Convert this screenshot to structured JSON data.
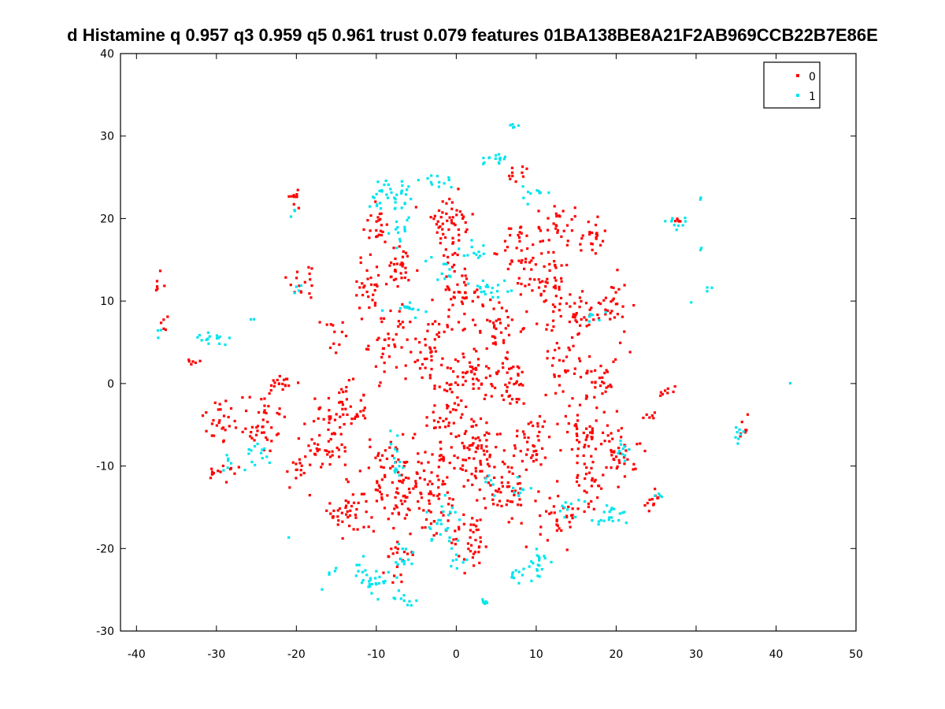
{
  "chart_data": {
    "type": "scatter",
    "title": "d Histamine q 0.957 q3 0.959 q5 0.961 trust 0.079 features 01BA138BE8A21F2AB969CCB22B7E86E",
    "xlabel": "",
    "ylabel": "",
    "xlim": [
      -42,
      50
    ],
    "ylim": [
      -30,
      40
    ],
    "x_ticks": [
      "-40",
      "-30",
      "-20",
      "-10",
      "0",
      "10",
      "20",
      "30",
      "40",
      "50"
    ],
    "y_ticks": [
      "-30",
      "-20",
      "-10",
      "0",
      "10",
      "20",
      "30",
      "40"
    ],
    "grid": false,
    "legend_position": "top-right",
    "series": [
      {
        "name": "0",
        "color": "#ff0000",
        "clusters": [
          {
            "cx": -37.5,
            "cy": 12.5,
            "rx": 0.6,
            "ry": 1.5,
            "n": 6
          },
          {
            "cx": -36.5,
            "cy": 7,
            "rx": 0.5,
            "ry": 1.2,
            "n": 5
          },
          {
            "cx": -33,
            "cy": 2.5,
            "rx": 1.3,
            "ry": 0.8,
            "n": 6
          },
          {
            "cx": -29.5,
            "cy": -4.5,
            "rx": 2.0,
            "ry": 2.5,
            "n": 22
          },
          {
            "cx": -29,
            "cy": -11,
            "rx": 2.0,
            "ry": 1.0,
            "n": 14
          },
          {
            "cx": -24.5,
            "cy": -4.5,
            "rx": 2.8,
            "ry": 3.5,
            "n": 45
          },
          {
            "cx": -22,
            "cy": 0,
            "rx": 1.6,
            "ry": 1.0,
            "n": 18
          },
          {
            "cx": -20,
            "cy": -10.5,
            "rx": 1.3,
            "ry": 2.0,
            "n": 14
          },
          {
            "cx": -20,
            "cy": 22.5,
            "rx": 1.0,
            "ry": 1.5,
            "n": 10
          },
          {
            "cx": -19,
            "cy": 12.5,
            "rx": 1.8,
            "ry": 2.0,
            "n": 16
          },
          {
            "cx": -16,
            "cy": -8,
            "rx": 2.5,
            "ry": 2.2,
            "n": 35
          },
          {
            "cx": -14.5,
            "cy": -3.5,
            "rx": 3.0,
            "ry": 2.8,
            "n": 55
          },
          {
            "cx": -15.5,
            "cy": 6,
            "rx": 1.2,
            "ry": 2.0,
            "n": 12
          },
          {
            "cx": -13.5,
            "cy": -15.5,
            "rx": 1.8,
            "ry": 3.5,
            "n": 40
          },
          {
            "cx": -11,
            "cy": 12,
            "rx": 1.8,
            "ry": 3.0,
            "n": 30
          },
          {
            "cx": -9,
            "cy": -12,
            "rx": 2.0,
            "ry": 5.0,
            "n": 55
          },
          {
            "cx": -10,
            "cy": 19,
            "rx": 1.5,
            "ry": 2.0,
            "n": 22
          },
          {
            "cx": -8.5,
            "cy": 5,
            "rx": 2.0,
            "ry": 3.5,
            "n": 40
          },
          {
            "cx": -7,
            "cy": -22,
            "rx": 1.5,
            "ry": 2.2,
            "n": 18
          },
          {
            "cx": -7,
            "cy": 14,
            "rx": 2.0,
            "ry": 2.2,
            "n": 30
          },
          {
            "cx": -6.5,
            "cy": -13,
            "rx": 1.2,
            "ry": 4.5,
            "n": 30
          },
          {
            "cx": -3,
            "cy": -12,
            "rx": 2.2,
            "ry": 5.5,
            "n": 80
          },
          {
            "cx": -3,
            "cy": 4,
            "rx": 2.2,
            "ry": 3.5,
            "n": 45
          },
          {
            "cx": -1,
            "cy": -3,
            "rx": 1.5,
            "ry": 3.0,
            "n": 30
          },
          {
            "cx": -1,
            "cy": 19,
            "rx": 2.8,
            "ry": 3.5,
            "n": 55
          },
          {
            "cx": 0.5,
            "cy": 11,
            "rx": 2.5,
            "ry": 3.0,
            "n": 45
          },
          {
            "cx": 2,
            "cy": -8,
            "rx": 3.0,
            "ry": 4.5,
            "n": 80
          },
          {
            "cx": 2.5,
            "cy": 1.5,
            "rx": 2.5,
            "ry": 2.5,
            "n": 45
          },
          {
            "cx": 2,
            "cy": -19,
            "rx": 2.2,
            "ry": 3.0,
            "n": 40
          },
          {
            "cx": 5,
            "cy": 7,
            "rx": 2.5,
            "ry": 3.0,
            "n": 40
          },
          {
            "cx": 6,
            "cy": -13,
            "rx": 2.5,
            "ry": 3.5,
            "n": 50
          },
          {
            "cx": 7,
            "cy": 0,
            "rx": 2.2,
            "ry": 2.5,
            "n": 35
          },
          {
            "cx": 8,
            "cy": 16,
            "rx": 2.0,
            "ry": 3.0,
            "n": 35
          },
          {
            "cx": 8,
            "cy": 25.5,
            "rx": 1.5,
            "ry": 0.8,
            "n": 10
          },
          {
            "cx": 9.5,
            "cy": -7,
            "rx": 2.2,
            "ry": 3.0,
            "n": 40
          },
          {
            "cx": 11.5,
            "cy": 12,
            "rx": 2.8,
            "ry": 4.0,
            "n": 60
          },
          {
            "cx": 12.5,
            "cy": 19,
            "rx": 2.0,
            "ry": 2.5,
            "n": 30
          },
          {
            "cx": 13,
            "cy": -16,
            "rx": 2.2,
            "ry": 3.0,
            "n": 35
          },
          {
            "cx": 13.5,
            "cy": 3,
            "rx": 2.2,
            "ry": 3.0,
            "n": 30
          },
          {
            "cx": 15.5,
            "cy": 8,
            "rx": 2.0,
            "ry": 2.2,
            "n": 30
          },
          {
            "cx": 16,
            "cy": -6,
            "rx": 2.5,
            "ry": 3.0,
            "n": 50
          },
          {
            "cx": 16.5,
            "cy": -12,
            "rx": 1.8,
            "ry": 2.5,
            "n": 25
          },
          {
            "cx": 17,
            "cy": 17.5,
            "rx": 1.5,
            "ry": 2.5,
            "n": 22
          },
          {
            "cx": 18,
            "cy": 1,
            "rx": 2.0,
            "ry": 2.5,
            "n": 30
          },
          {
            "cx": 19.5,
            "cy": 9,
            "rx": 1.8,
            "ry": 3.0,
            "n": 30
          },
          {
            "cx": 20.5,
            "cy": -8,
            "rx": 1.8,
            "ry": 3.5,
            "n": 40
          },
          {
            "cx": 24,
            "cy": -4,
            "rx": 0.8,
            "ry": 0.6,
            "n": 6
          },
          {
            "cx": 24.5,
            "cy": -14.5,
            "rx": 1.0,
            "ry": 1.2,
            "n": 12
          },
          {
            "cx": 26.5,
            "cy": -1,
            "rx": 1.5,
            "ry": 0.6,
            "n": 8
          },
          {
            "cx": 28,
            "cy": 19.5,
            "rx": 0.8,
            "ry": 0.5,
            "n": 5
          },
          {
            "cx": 36,
            "cy": -6,
            "rx": 0.5,
            "ry": 1.5,
            "n": 8
          }
        ]
      },
      {
        "name": "1",
        "color": "#00e5ee",
        "clusters": [
          {
            "cx": -30.5,
            "cy": 5.5,
            "rx": 1.8,
            "ry": 0.8,
            "n": 16
          },
          {
            "cx": -37,
            "cy": 6.5,
            "rx": 0.4,
            "ry": 0.6,
            "n": 3
          },
          {
            "cx": -28.5,
            "cy": -9.5,
            "rx": 1.0,
            "ry": 1.0,
            "n": 6
          },
          {
            "cx": -25,
            "cy": -8.5,
            "rx": 1.5,
            "ry": 1.5,
            "n": 14
          },
          {
            "cx": -25.5,
            "cy": 8,
            "rx": 0.3,
            "ry": 0.5,
            "n": 2
          },
          {
            "cx": -20.5,
            "cy": 20,
            "rx": 0.5,
            "ry": 1.0,
            "n": 3
          },
          {
            "cx": -20,
            "cy": 11,
            "rx": 0.6,
            "ry": 0.8,
            "n": 4
          },
          {
            "cx": -21,
            "cy": -18.5,
            "rx": 0.3,
            "ry": 0.3,
            "n": 1
          },
          {
            "cx": -17,
            "cy": -25,
            "rx": 0.3,
            "ry": 0.3,
            "n": 1
          },
          {
            "cx": -15,
            "cy": -23,
            "rx": 0.8,
            "ry": 0.8,
            "n": 4
          },
          {
            "cx": -10.5,
            "cy": -23.5,
            "rx": 2.0,
            "ry": 1.8,
            "n": 30
          },
          {
            "cx": -8.5,
            "cy": 23,
            "rx": 2.2,
            "ry": 1.5,
            "n": 35
          },
          {
            "cx": -7,
            "cy": 19,
            "rx": 1.5,
            "ry": 2.0,
            "n": 15
          },
          {
            "cx": -6,
            "cy": 9,
            "rx": 1.8,
            "ry": 1.0,
            "n": 14
          },
          {
            "cx": -6.5,
            "cy": -26,
            "rx": 1.0,
            "ry": 0.6,
            "n": 10
          },
          {
            "cx": -7.5,
            "cy": -9,
            "rx": 0.8,
            "ry": 3.5,
            "n": 16
          },
          {
            "cx": -6.5,
            "cy": -21,
            "rx": 1.2,
            "ry": 1.5,
            "n": 12
          },
          {
            "cx": -2.5,
            "cy": 24.5,
            "rx": 1.8,
            "ry": 0.8,
            "n": 12
          },
          {
            "cx": -2,
            "cy": 14,
            "rx": 1.5,
            "ry": 1.5,
            "n": 12
          },
          {
            "cx": -1.5,
            "cy": -17,
            "rx": 2.0,
            "ry": 2.0,
            "n": 25
          },
          {
            "cx": 0,
            "cy": -21,
            "rx": 1.0,
            "ry": 1.0,
            "n": 8
          },
          {
            "cx": 2,
            "cy": 16,
            "rx": 1.5,
            "ry": 1.5,
            "n": 12
          },
          {
            "cx": 3.5,
            "cy": -26.5,
            "rx": 0.8,
            "ry": 0.4,
            "n": 6
          },
          {
            "cx": 4.5,
            "cy": 11.5,
            "rx": 2.5,
            "ry": 1.5,
            "n": 20
          },
          {
            "cx": 4.5,
            "cy": 27,
            "rx": 1.5,
            "ry": 1.0,
            "n": 15
          },
          {
            "cx": 4,
            "cy": -12,
            "rx": 1.0,
            "ry": 1.0,
            "n": 6
          },
          {
            "cx": 7.5,
            "cy": 31.2,
            "rx": 0.6,
            "ry": 0.4,
            "n": 5
          },
          {
            "cx": 8,
            "cy": -23,
            "rx": 1.0,
            "ry": 1.0,
            "n": 10
          },
          {
            "cx": 9.8,
            "cy": 23,
            "rx": 1.2,
            "ry": 0.8,
            "n": 10
          },
          {
            "cx": 10,
            "cy": -22,
            "rx": 1.2,
            "ry": 1.8,
            "n": 20
          },
          {
            "cx": 8.5,
            "cy": -13,
            "rx": 1.2,
            "ry": 1.0,
            "n": 8
          },
          {
            "cx": 14,
            "cy": -15,
            "rx": 1.2,
            "ry": 1.0,
            "n": 10
          },
          {
            "cx": 17.5,
            "cy": 8,
            "rx": 1.0,
            "ry": 1.0,
            "n": 6
          },
          {
            "cx": 19.5,
            "cy": -16,
            "rx": 1.8,
            "ry": 1.2,
            "n": 20
          },
          {
            "cx": 21,
            "cy": -8,
            "rx": 0.8,
            "ry": 2.0,
            "n": 10
          },
          {
            "cx": 25,
            "cy": -13.5,
            "rx": 0.5,
            "ry": 0.5,
            "n": 4
          },
          {
            "cx": 27.5,
            "cy": 19.5,
            "rx": 1.2,
            "ry": 0.5,
            "n": 10
          },
          {
            "cx": 30.5,
            "cy": 22.5,
            "rx": 0.3,
            "ry": 0.4,
            "n": 2
          },
          {
            "cx": 30.5,
            "cy": 16,
            "rx": 0.3,
            "ry": 0.4,
            "n": 2
          },
          {
            "cx": 31.5,
            "cy": 11.5,
            "rx": 0.4,
            "ry": 0.6,
            "n": 3
          },
          {
            "cx": 29.5,
            "cy": 10,
            "rx": 0.3,
            "ry": 0.3,
            "n": 1
          },
          {
            "cx": 35.5,
            "cy": -5.5,
            "rx": 0.6,
            "ry": 1.2,
            "n": 8
          },
          {
            "cx": 42,
            "cy": 0,
            "rx": 0.2,
            "ry": 0.2,
            "n": 1
          }
        ]
      }
    ]
  }
}
